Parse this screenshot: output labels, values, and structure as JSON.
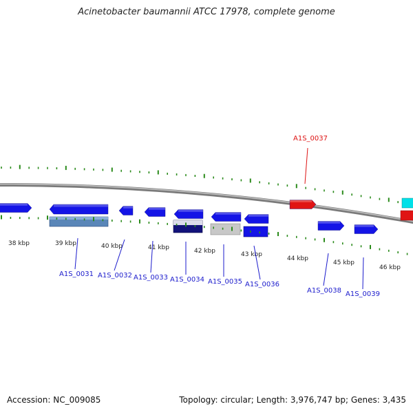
{
  "title": "Acinetobacter baumannii ATCC 17978, complete genome",
  "footer": {
    "accession": "Accession: NC_009085",
    "summary": "Topology: circular; Length: 3,976,747 bp; Genes: 3,435"
  },
  "colors": {
    "backbone": "#8a8a8a",
    "tick": "#2a8a1a",
    "gene_forward": "#1414e6",
    "gene_reverse": "#1414e6",
    "rna": "#e01414",
    "label_gene": "#1a1acc",
    "label_rna": "#dd1111",
    "cds_alt": "#5a86b8",
    "cds_dark": "#12127a",
    "pseudo": "#c8c8c8",
    "misc": "#00e0e8"
  },
  "ruler": {
    "ticks": [
      {
        "label": "38 kbp"
      },
      {
        "label": "39 kbp"
      },
      {
        "label": "40 kbp"
      },
      {
        "label": "41 kbp"
      },
      {
        "label": "42 kbp"
      },
      {
        "label": "43 kbp"
      },
      {
        "label": "44 kbp"
      },
      {
        "label": "45 kbp"
      },
      {
        "label": "46 kbp"
      }
    ]
  },
  "genes": [
    {
      "label": "A1S_0031",
      "type": "gene"
    },
    {
      "label": "A1S_0032",
      "type": "gene"
    },
    {
      "label": "A1S_0033",
      "type": "gene"
    },
    {
      "label": "A1S_0034",
      "type": "gene"
    },
    {
      "label": "A1S_0035",
      "type": "gene"
    },
    {
      "label": "A1S_0036",
      "type": "gene"
    },
    {
      "label": "A1S_0037",
      "type": "rna"
    },
    {
      "label": "A1S_0038",
      "type": "gene"
    },
    {
      "label": "A1S_0039",
      "type": "gene"
    }
  ]
}
